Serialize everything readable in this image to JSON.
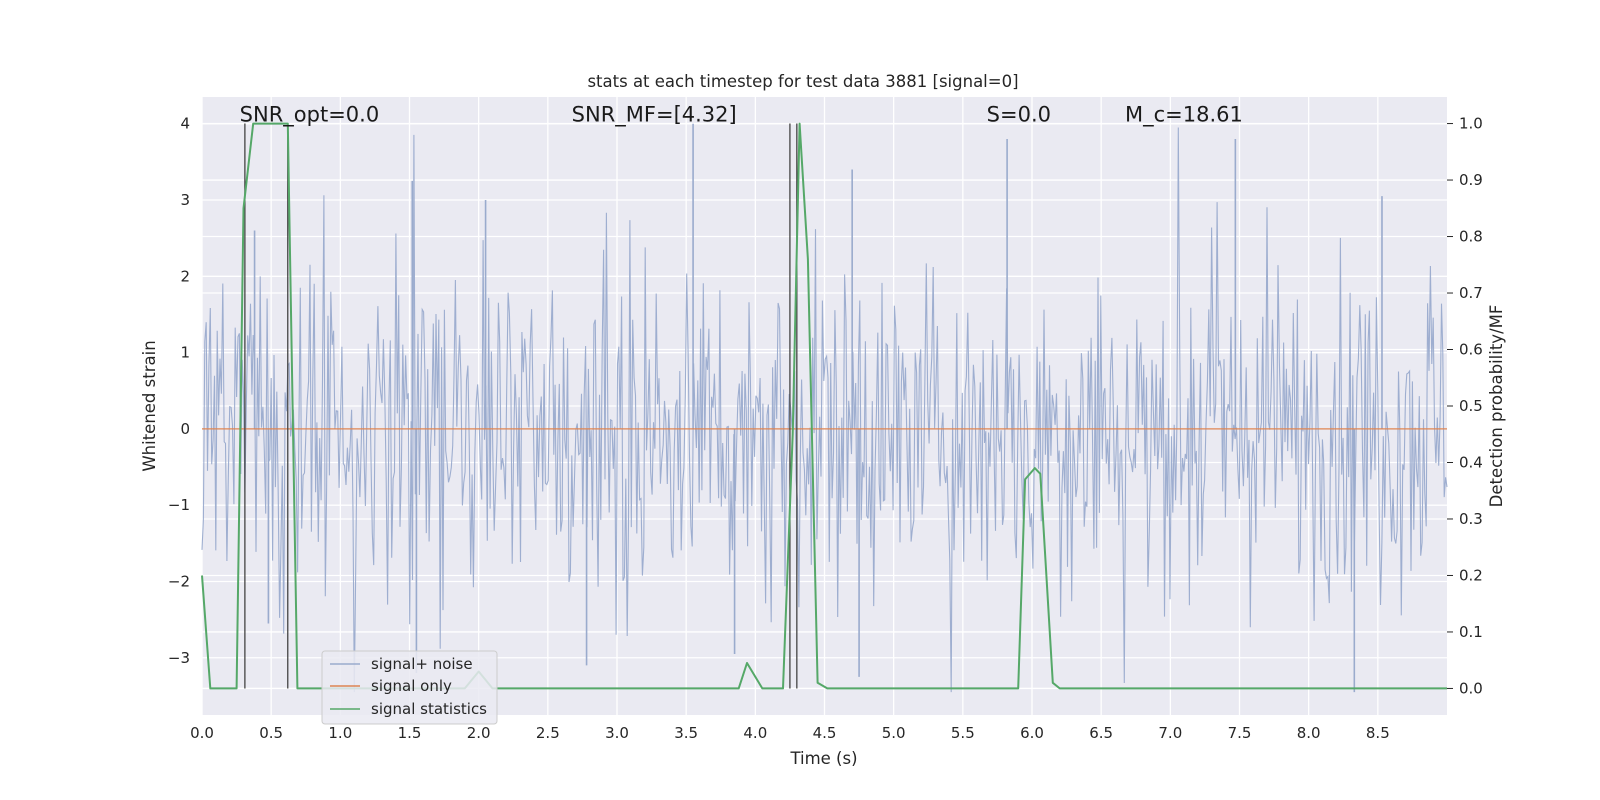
{
  "chart_data": {
    "type": "line",
    "title": "stats at each timestep for test data 3881 [signal=0]",
    "xlabel": "Time (s)",
    "ylabel": "Whitened strain",
    "y2label": "Detection probability/MF",
    "xlim": [
      0.0,
      9.0
    ],
    "ylim": [
      -3.75,
      4.35
    ],
    "y2lim": [
      -0.047,
      1.047
    ],
    "xticks": [
      "0.0",
      "0.5",
      "1.0",
      "1.5",
      "2.0",
      "2.5",
      "3.0",
      "3.5",
      "4.0",
      "4.5",
      "5.0",
      "5.5",
      "6.0",
      "6.5",
      "7.0",
      "7.5",
      "8.0",
      "8.5"
    ],
    "yticks": [
      "−3",
      "−2",
      "−1",
      "0",
      "1",
      "2",
      "3",
      "4"
    ],
    "y2ticks": [
      "0.0",
      "0.1",
      "0.2",
      "0.3",
      "0.4",
      "0.5",
      "0.6",
      "0.7",
      "0.8",
      "0.9",
      "1.0"
    ],
    "grid": true,
    "legend_position": "lower-left",
    "annotations": [
      {
        "id": "snr-opt",
        "text": "SNR_opt=0.0",
        "x": 0.2,
        "y": 4.0
      },
      {
        "id": "snr-mf",
        "text": "SNR_MF=[4.32]",
        "x": 2.6,
        "y": 4.0
      },
      {
        "id": "s-value",
        "text": "S=0.0",
        "x": 5.6,
        "y": 4.0
      },
      {
        "id": "chirp-mass",
        "text": "M_c=18.61",
        "x": 6.6,
        "y": 4.0
      }
    ],
    "series": [
      {
        "name": "signal+ noise",
        "axis": "left",
        "color": "#9aabcd",
        "kind": "noise",
        "sample_count": 900,
        "typical_range": [
          -1.5,
          1.5
        ],
        "extreme_peaks": [
          {
            "x": 0.38,
            "y": 2.6
          },
          {
            "x": 1.52,
            "y": 3.25
          },
          {
            "x": 2.05,
            "y": 3.0
          },
          {
            "x": 3.55,
            "y": 4.0
          },
          {
            "x": 4.7,
            "y": 3.4
          },
          {
            "x": 5.82,
            "y": 3.8
          },
          {
            "x": 7.47,
            "y": 3.8
          },
          {
            "x": 8.53,
            "y": 3.05
          },
          {
            "x": 0.48,
            "y": -2.55
          },
          {
            "x": 1.55,
            "y": -3.2
          },
          {
            "x": 2.78,
            "y": -3.1
          },
          {
            "x": 3.85,
            "y": -2.95
          },
          {
            "x": 4.75,
            "y": -3.25
          },
          {
            "x": 8.33,
            "y": -3.45
          }
        ]
      },
      {
        "name": "signal only",
        "axis": "left",
        "color": "#dd8452",
        "x": [
          0.0,
          9.0
        ],
        "y": [
          0.0,
          0.0
        ]
      },
      {
        "name": "signal statistics",
        "axis": "right",
        "color": "#55a868",
        "x": [
          0.0,
          0.06,
          0.25,
          0.3,
          0.37,
          0.4,
          0.55,
          0.62,
          0.69,
          1.9,
          2.0,
          2.1,
          3.88,
          3.94,
          4.05,
          4.2,
          4.27,
          4.32,
          4.38,
          4.45,
          4.52,
          5.9,
          5.95,
          6.02,
          6.06,
          6.15,
          6.2,
          9.0
        ],
        "y": [
          0.2,
          0.0,
          0.0,
          0.85,
          1.0,
          1.0,
          1.0,
          1.0,
          0.0,
          0.0,
          0.03,
          0.0,
          0.0,
          0.045,
          0.0,
          0.0,
          0.45,
          1.0,
          0.76,
          0.01,
          0.0,
          0.0,
          0.37,
          0.39,
          0.38,
          0.01,
          0.0,
          0.0
        ]
      }
    ],
    "vertical_lines": [
      0.31,
      0.62,
      4.25,
      4.3
    ],
    "vertical_line_color": "#444444"
  }
}
